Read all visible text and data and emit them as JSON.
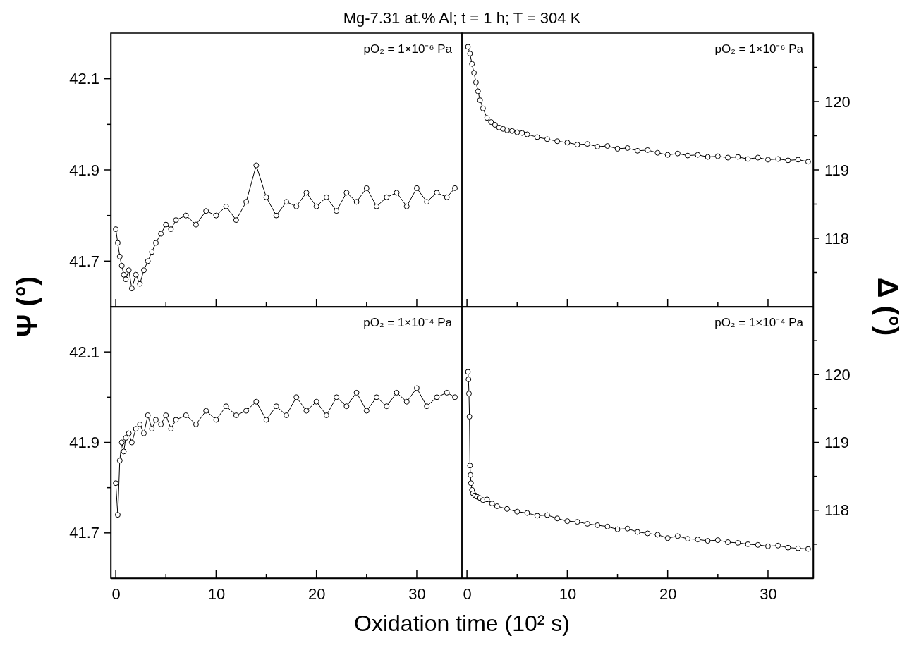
{
  "chart_data": [
    {
      "type": "line",
      "title": "Mg-7.31 at.% Al; t = 1 h; T = 304 K",
      "ylabel": "Ψ (°)",
      "marker": "circle",
      "tick_labels": "y",
      "annotations": [
        "pO₂ = 1×10⁻⁶ Pa"
      ],
      "x": [
        0,
        0.2,
        0.4,
        0.6,
        0.8,
        1,
        1.3,
        1.6,
        2,
        2.4,
        2.8,
        3.2,
        3.6,
        4,
        4.5,
        5,
        5.5,
        6,
        7,
        8,
        9,
        10,
        11,
        12,
        13,
        14,
        15,
        16,
        17,
        18,
        19,
        20,
        21,
        22,
        23,
        24,
        25,
        26,
        27,
        28,
        29,
        30,
        31,
        32,
        33,
        33.8
      ],
      "series": [
        {
          "color": "#000000",
          "values": [
            41.77,
            41.74,
            41.71,
            41.69,
            41.67,
            41.66,
            41.68,
            41.64,
            41.67,
            41.65,
            41.68,
            41.7,
            41.72,
            41.74,
            41.76,
            41.78,
            41.77,
            41.79,
            41.8,
            41.78,
            41.81,
            41.8,
            41.82,
            41.79,
            41.83,
            41.91,
            41.84,
            41.8,
            41.83,
            41.82,
            41.85,
            41.82,
            41.84,
            41.81,
            41.85,
            41.83,
            41.86,
            41.82,
            41.84,
            41.85,
            41.82,
            41.86,
            41.83,
            41.85,
            41.84,
            41.86
          ]
        }
      ],
      "xlim": [
        -0.5,
        34.5
      ],
      "xticks": [
        0,
        {
          "value": 5,
          "label": null
        },
        10,
        {
          "value": 15,
          "label": null
        },
        20,
        {
          "value": 25,
          "label": null
        },
        30
      ],
      "ylim": [
        41.6,
        42.2
      ],
      "yticks": [
        41.7,
        {
          "value": 41.8,
          "label": null
        },
        41.9,
        {
          "value": 42.0,
          "label": null
        },
        42.1
      ]
    },
    {
      "type": "line",
      "ylabel": "Δ (°)",
      "marker": "circle",
      "tick_labels": "y",
      "annotations": [
        "pO₂ = 1×10⁻⁶ Pa"
      ],
      "x": [
        0.1,
        0.3,
        0.5,
        0.7,
        0.9,
        1.1,
        1.3,
        1.6,
        2,
        2.4,
        2.8,
        3.2,
        3.6,
        4,
        4.5,
        5,
        5.5,
        6,
        7,
        8,
        9,
        10,
        11,
        12,
        13,
        14,
        15,
        16,
        17,
        18,
        19,
        20,
        21,
        22,
        23,
        24,
        25,
        26,
        27,
        28,
        29,
        30,
        31,
        32,
        33,
        34
      ],
      "series": [
        {
          "color": "#000000",
          "values": [
            120.8,
            120.7,
            120.55,
            120.42,
            120.28,
            120.15,
            120.02,
            119.9,
            119.76,
            119.7,
            119.66,
            119.62,
            119.6,
            119.58,
            119.57,
            119.55,
            119.54,
            119.52,
            119.48,
            119.45,
            119.42,
            119.4,
            119.37,
            119.38,
            119.34,
            119.35,
            119.31,
            119.32,
            119.28,
            119.29,
            119.25,
            119.22,
            119.24,
            119.21,
            119.22,
            119.19,
            119.2,
            119.18,
            119.19,
            119.16,
            119.18,
            119.15,
            119.16,
            119.14,
            119.15,
            119.12
          ]
        }
      ],
      "xlim": [
        -0.5,
        34.5
      ],
      "xticks": [
        0,
        {
          "value": 5,
          "label": null
        },
        10,
        {
          "value": 15,
          "label": null
        },
        20,
        {
          "value": 25,
          "label": null
        },
        30
      ],
      "ylim": [
        117,
        121
      ],
      "yticks": [
        {
          "value": 117.5,
          "label": null
        },
        118,
        {
          "value": 118.5,
          "label": null
        },
        119,
        {
          "value": 119.5,
          "label": null
        },
        120,
        {
          "value": 120.5,
          "label": null
        }
      ]
    },
    {
      "type": "line",
      "xlabel": "Oxidation time (10² s)",
      "marker": "circle",
      "annotations": [
        "pO₂ = 1×10⁻⁴ Pa"
      ],
      "x": [
        0,
        0.2,
        0.4,
        0.6,
        0.8,
        1,
        1.3,
        1.6,
        2,
        2.4,
        2.8,
        3.2,
        3.6,
        4,
        4.5,
        5,
        5.5,
        6,
        7,
        8,
        9,
        10,
        11,
        12,
        13,
        14,
        15,
        16,
        17,
        18,
        19,
        20,
        21,
        22,
        23,
        24,
        25,
        26,
        27,
        28,
        29,
        30,
        31,
        32,
        33,
        33.8
      ],
      "series": [
        {
          "color": "#000000",
          "values": [
            41.81,
            41.74,
            41.86,
            41.9,
            41.88,
            41.91,
            41.92,
            41.9,
            41.93,
            41.94,
            41.92,
            41.96,
            41.93,
            41.95,
            41.94,
            41.96,
            41.93,
            41.95,
            41.96,
            41.94,
            41.97,
            41.95,
            41.98,
            41.96,
            41.97,
            41.99,
            41.95,
            41.98,
            41.96,
            42.0,
            41.97,
            41.99,
            41.96,
            42.0,
            41.98,
            42.01,
            41.97,
            42.0,
            41.98,
            42.01,
            41.99,
            42.02,
            41.98,
            42.0,
            42.01,
            42.0
          ]
        }
      ],
      "xlim": [
        -0.5,
        34.5
      ],
      "xticks": [
        0,
        {
          "value": 5,
          "label": null
        },
        10,
        {
          "value": 15,
          "label": null
        },
        20,
        {
          "value": 25,
          "label": null
        },
        30
      ],
      "ylim": [
        41.6,
        42.2
      ],
      "yticks": [
        41.7,
        {
          "value": 41.8,
          "label": null
        },
        41.9,
        {
          "value": 42.0,
          "label": null
        },
        42.1
      ]
    },
    {
      "type": "line",
      "marker": "circle",
      "annotations": [
        "pO₂ = 1×10⁻⁴ Pa"
      ],
      "x": [
        0.1,
        0.15,
        0.2,
        0.25,
        0.3,
        0.35,
        0.4,
        0.5,
        0.6,
        0.8,
        1,
        1.3,
        1.6,
        2,
        2.5,
        3,
        4,
        5,
        6,
        7,
        8,
        9,
        10,
        11,
        12,
        13,
        14,
        15,
        16,
        17,
        18,
        19,
        20,
        21,
        22,
        23,
        24,
        25,
        26,
        27,
        28,
        29,
        30,
        31,
        32,
        33,
        34
      ],
      "series": [
        {
          "color": "#000000",
          "values": [
            120.04,
            119.93,
            119.72,
            119.38,
            118.66,
            118.52,
            118.4,
            118.3,
            118.25,
            118.22,
            118.2,
            118.18,
            118.15,
            118.16,
            118.1,
            118.06,
            118.02,
            117.98,
            117.96,
            117.92,
            117.93,
            117.88,
            117.84,
            117.83,
            117.8,
            117.78,
            117.76,
            117.72,
            117.73,
            117.68,
            117.66,
            117.64,
            117.59,
            117.62,
            117.58,
            117.57,
            117.55,
            117.56,
            117.53,
            117.52,
            117.5,
            117.49,
            117.47,
            117.48,
            117.45,
            117.44,
            117.43
          ]
        }
      ],
      "xlim": [
        -0.5,
        34.5
      ],
      "xticks": [
        0,
        {
          "value": 5,
          "label": null
        },
        10,
        {
          "value": 15,
          "label": null
        },
        20,
        {
          "value": 25,
          "label": null
        },
        30
      ],
      "ylim": [
        117,
        121
      ],
      "yticks": [
        {
          "value": 117.5,
          "label": null
        },
        118,
        {
          "value": 118.5,
          "label": null
        },
        119,
        {
          "value": 119.5,
          "label": null
        },
        120,
        {
          "value": 120.5,
          "label": null
        }
      ]
    }
  ]
}
